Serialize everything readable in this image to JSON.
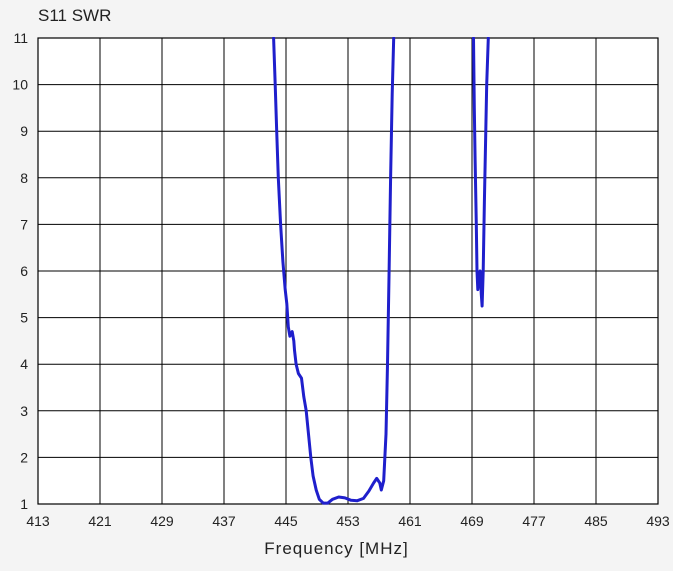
{
  "chart_data": {
    "type": "line",
    "title": "S11 SWR",
    "xlabel": "Frequency [MHz]",
    "ylabel": "",
    "xlim": [
      413,
      493
    ],
    "ylim": [
      1,
      11
    ],
    "xticks": [
      "413",
      "421",
      "429",
      "437",
      "445",
      "453",
      "461",
      "469",
      "477",
      "485",
      "493"
    ],
    "yticks": [
      "1",
      "2",
      "3",
      "4",
      "5",
      "6",
      "7",
      "8",
      "9",
      "10",
      "11"
    ],
    "grid": true,
    "line_color": "#1f1fcc",
    "series": [
      {
        "segments": [
          [
            [
              443.4,
              11
            ],
            [
              443.6,
              10.0
            ],
            [
              443.8,
              9.0
            ],
            [
              444.0,
              8.0
            ],
            [
              444.3,
              7.0
            ],
            [
              444.6,
              6.2
            ],
            [
              444.9,
              5.6
            ],
            [
              445.1,
              5.3
            ],
            [
              445.3,
              4.8
            ],
            [
              445.5,
              4.6
            ],
            [
              445.8,
              4.7
            ],
            [
              446.0,
              4.5
            ],
            [
              446.1,
              4.3
            ],
            [
              446.3,
              4.0
            ],
            [
              446.6,
              3.8
            ],
            [
              447.0,
              3.7
            ],
            [
              447.3,
              3.3
            ],
            [
              447.6,
              3.0
            ],
            [
              447.9,
              2.5
            ],
            [
              448.2,
              2.0
            ],
            [
              448.5,
              1.6
            ],
            [
              448.9,
              1.3
            ],
            [
              449.3,
              1.1
            ],
            [
              449.8,
              1.02
            ],
            [
              450.4,
              1.02
            ],
            [
              451.0,
              1.1
            ],
            [
              451.8,
              1.15
            ],
            [
              452.6,
              1.13
            ],
            [
              453.4,
              1.08
            ],
            [
              454.2,
              1.07
            ],
            [
              455.0,
              1.12
            ],
            [
              455.7,
              1.28
            ],
            [
              456.3,
              1.45
            ],
            [
              456.7,
              1.55
            ],
            [
              457.1,
              1.45
            ],
            [
              457.3,
              1.3
            ],
            [
              457.6,
              1.5
            ],
            [
              457.9,
              2.5
            ],
            [
              458.1,
              4.0
            ],
            [
              458.3,
              6.0
            ],
            [
              458.5,
              8.0
            ],
            [
              458.7,
              9.8
            ],
            [
              458.9,
              11
            ]
          ],
          [
            [
              469.2,
              11
            ],
            [
              469.3,
              9.5
            ],
            [
              469.4,
              8.4
            ],
            [
              469.55,
              7.0
            ],
            [
              469.65,
              6.0
            ],
            [
              469.75,
              5.6
            ],
            [
              469.9,
              5.9
            ],
            [
              470.05,
              6.0
            ],
            [
              470.2,
              5.5
            ],
            [
              470.3,
              5.25
            ],
            [
              470.45,
              6.0
            ],
            [
              470.6,
              7.5
            ],
            [
              470.75,
              8.8
            ],
            [
              470.9,
              10.0
            ],
            [
              471.1,
              11
            ]
          ]
        ]
      }
    ]
  }
}
